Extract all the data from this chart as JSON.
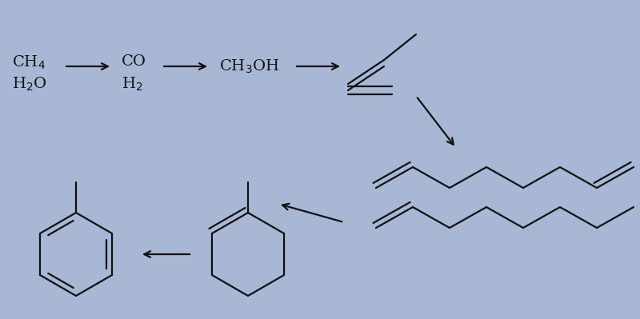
{
  "background_color": "#a8b8d4",
  "line_color": "#111111",
  "line_width": 1.6,
  "fig_width": 8.0,
  "fig_height": 3.99
}
